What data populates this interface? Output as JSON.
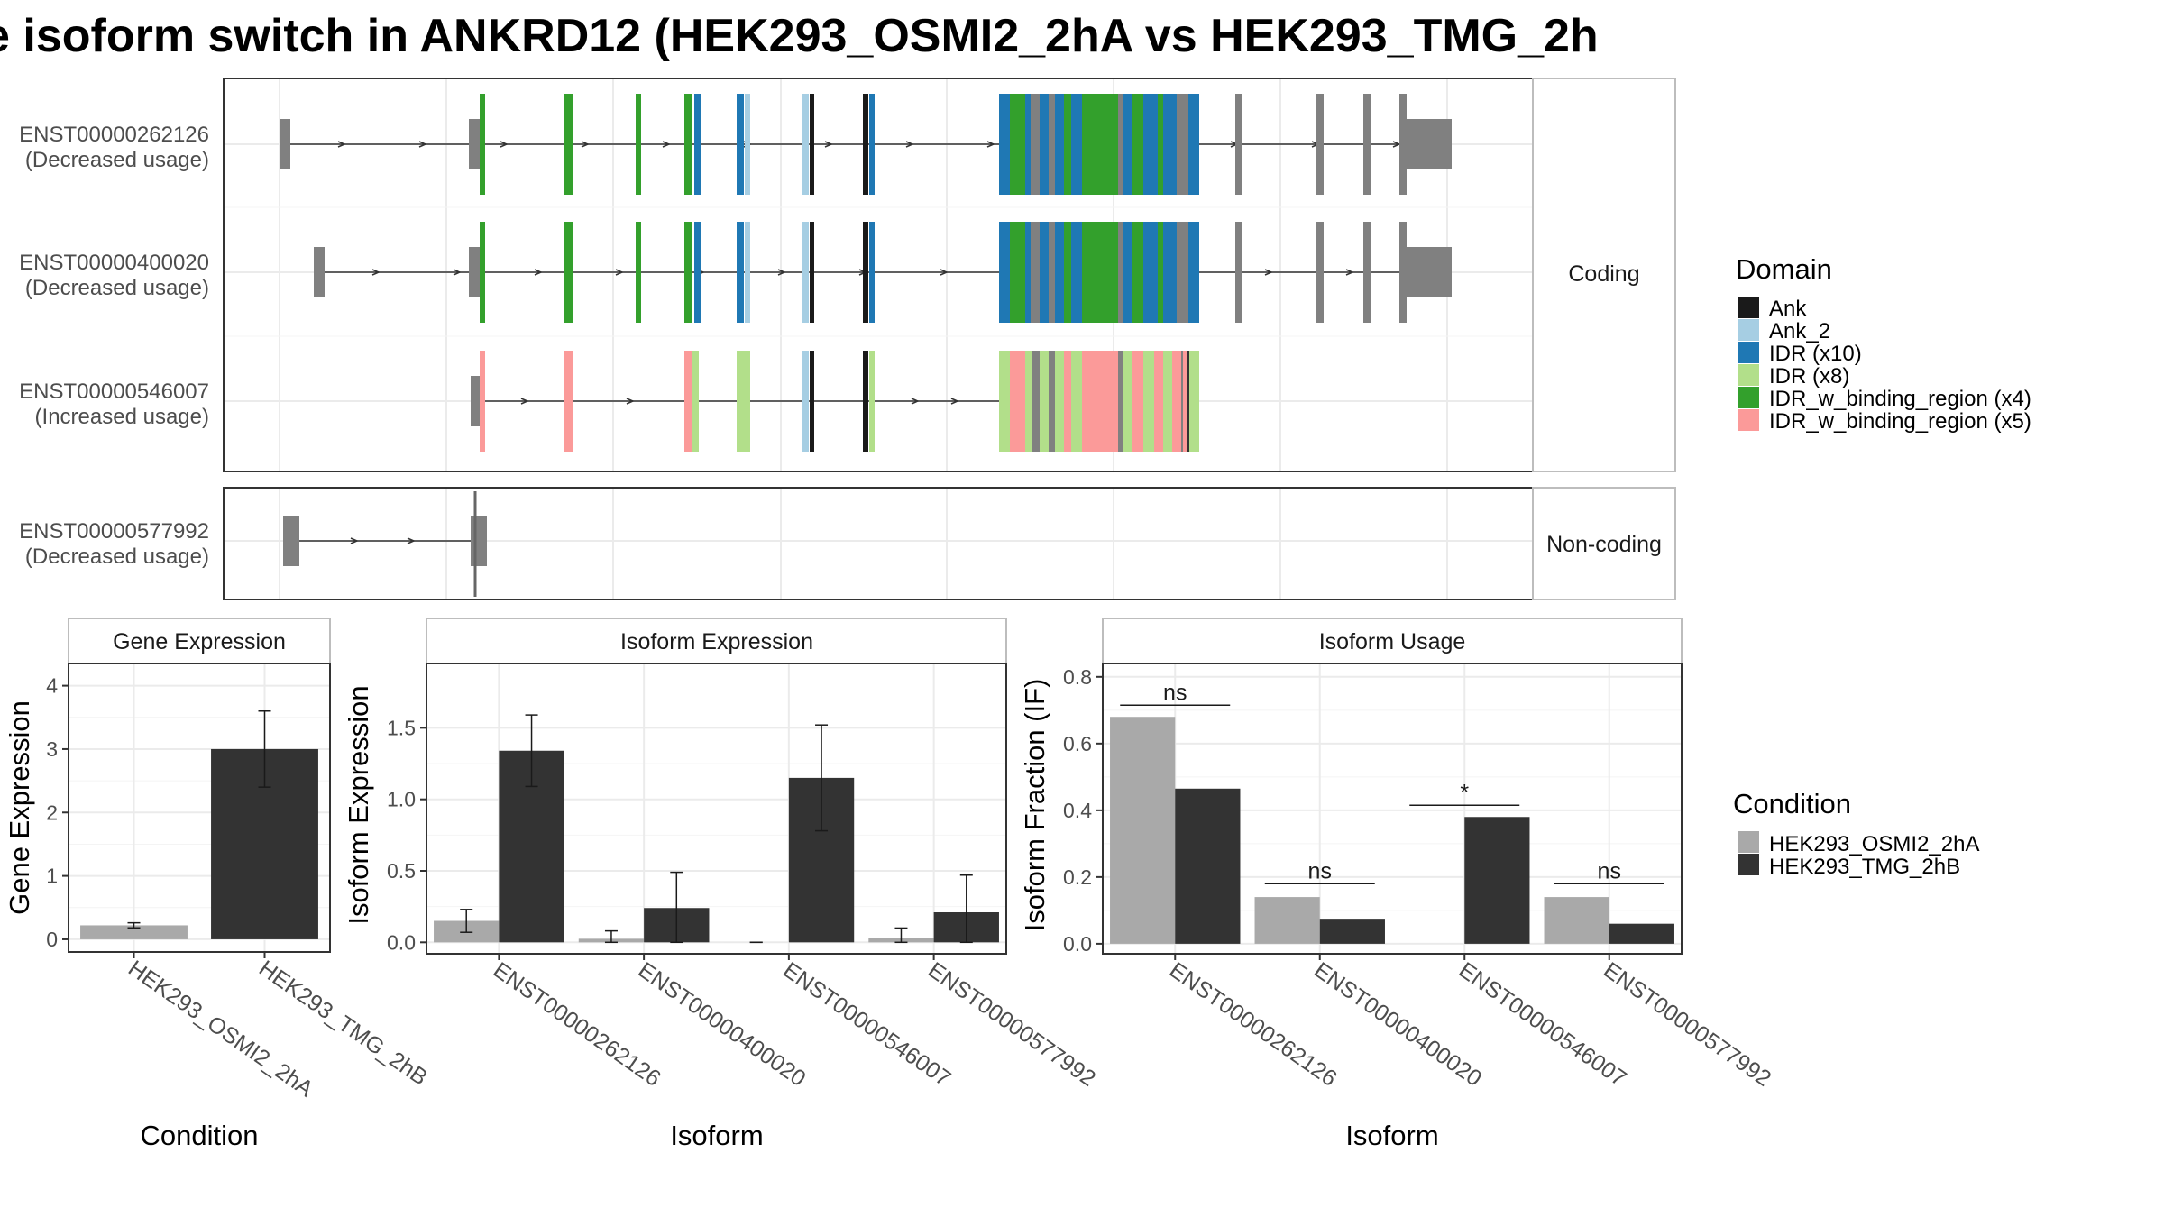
{
  "title": "e isoform switch in ANKRD12 (HEK293_OSMI2_2hA vs HEK293_TMG_2h",
  "colors": {
    "Ank": "#1a1a1a",
    "Ank_2": "#a6cee3",
    "IDR_x10": "#1f78b4",
    "IDR_x8": "#b2df8a",
    "IDR_w_binding_region_x4": "#33a02c",
    "IDR_w_binding_region_x5": "#fb9a99",
    "exon": "#808080",
    "condition_a": "#a9a9a9",
    "condition_b": "#333333"
  },
  "chart_data": [
    {
      "type": "gene-structure",
      "transcripts": [
        {
          "id": "ENST00000262126",
          "label": "(Decreased usage)",
          "group": "Coding"
        },
        {
          "id": "ENST00000400020",
          "label": "(Decreased usage)",
          "group": "Coding"
        },
        {
          "id": "ENST00000546007",
          "label": "(Increased usage)",
          "group": "Coding"
        },
        {
          "id": "ENST00000577992",
          "label": "(Decreased usage)",
          "group": "Non-coding"
        }
      ],
      "facets": [
        "Coding",
        "Non-coding"
      ],
      "legend": {
        "title": "Domain",
        "entries": [
          {
            "name": "Ank",
            "color": "#1a1a1a"
          },
          {
            "name": "Ank_2",
            "color": "#a6cee3"
          },
          {
            "name": "IDR (x10)",
            "color": "#1f78b4"
          },
          {
            "name": "IDR (x8)",
            "color": "#b2df8a"
          },
          {
            "name": "IDR_w_binding_region (x4)",
            "color": "#33a02c"
          },
          {
            "name": "IDR_w_binding_region (x5)",
            "color": "#fb9a99"
          }
        ]
      }
    },
    {
      "type": "bar",
      "title": "Gene Expression",
      "xlabel": "Condition",
      "ylabel": "Gene Expression",
      "categories": [
        "HEK293_OSMI2_2hA",
        "HEK293_TMG_2hB"
      ],
      "values": [
        0.22,
        3.0
      ],
      "errors": [
        [
          0.18,
          0.26
        ],
        [
          2.4,
          3.6
        ]
      ],
      "yticks": [
        0,
        1,
        2,
        3,
        4
      ],
      "ylim": [
        -0.2,
        4.35
      ]
    },
    {
      "type": "bar",
      "title": "Isoform Expression",
      "xlabel": "Isoform",
      "ylabel": "Isoform Expression",
      "categories": [
        "ENST00000262126",
        "ENST00000400020",
        "ENST00000546007",
        "ENST00000577992"
      ],
      "series": [
        {
          "name": "HEK293_OSMI2_2hA",
          "values": [
            0.15,
            0.025,
            0.0,
            0.03
          ],
          "errors": [
            [
              0.07,
              0.23
            ],
            [
              0.0,
              0.08
            ],
            [
              0.0,
              0.0
            ],
            [
              0.0,
              0.1
            ]
          ]
        },
        {
          "name": "HEK293_TMG_2hB",
          "values": [
            1.34,
            0.24,
            1.15,
            0.21
          ],
          "errors": [
            [
              1.09,
              1.59
            ],
            [
              0.0,
              0.49
            ],
            [
              0.78,
              1.52
            ],
            [
              0.0,
              0.47
            ]
          ]
        }
      ],
      "yticks": [
        0.0,
        0.5,
        1.0,
        1.5
      ],
      "ylim": [
        -0.08,
        1.95
      ]
    },
    {
      "type": "bar",
      "title": "Isoform Usage",
      "xlabel": "Isoform",
      "ylabel": "Isoform Fraction (IF)",
      "categories": [
        "ENST00000262126",
        "ENST00000400020",
        "ENST00000546007",
        "ENST00000577992"
      ],
      "series": [
        {
          "name": "HEK293_OSMI2_2hA",
          "values": [
            0.68,
            0.14,
            0.0,
            0.14
          ]
        },
        {
          "name": "HEK293_TMG_2hB",
          "values": [
            0.465,
            0.075,
            0.38,
            0.06
          ]
        }
      ],
      "significance": [
        "ns",
        "ns",
        "*",
        "ns"
      ],
      "sig_y": [
        0.715,
        0.18,
        0.415,
        0.18
      ],
      "yticks": [
        0.0,
        0.2,
        0.4,
        0.6,
        0.8
      ],
      "ylim": [
        -0.03,
        0.84
      ]
    }
  ],
  "facet_labels": {
    "coding": "Coding",
    "noncoding": "Non-coding"
  },
  "condition_legend": {
    "title": "Condition",
    "entries": [
      {
        "name": "HEK293_OSMI2_2hA",
        "color": "#a9a9a9"
      },
      {
        "name": "HEK293_TMG_2hB",
        "color": "#333333"
      }
    ]
  }
}
